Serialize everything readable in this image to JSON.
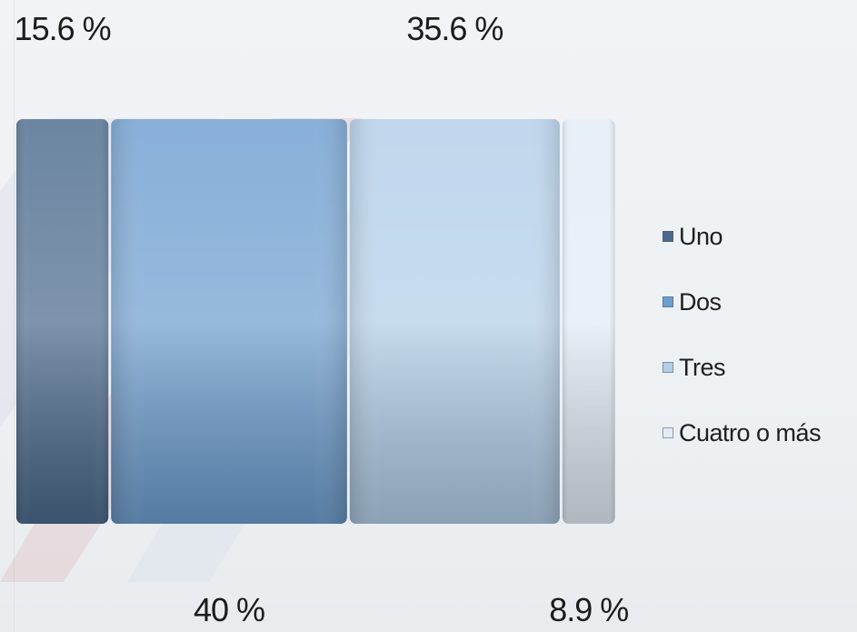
{
  "chart_data": {
    "type": "bar",
    "stacked": true,
    "orientation": "horizontal",
    "categories": [
      ""
    ],
    "series": [
      {
        "name": "Uno",
        "values": [
          15.6
        ],
        "label": "15.6 %",
        "label_pos": "top",
        "color": "#4b6a8c"
      },
      {
        "name": "Dos",
        "values": [
          40
        ],
        "label": "40 %",
        "label_pos": "bottom",
        "color": "#6e9ed0"
      },
      {
        "name": "Tres",
        "values": [
          35.6
        ],
        "label": "35.6 %",
        "label_pos": "top",
        "color": "#b2cee9"
      },
      {
        "name": "Cuatro o más",
        "values": [
          8.9
        ],
        "label": "8.9 %",
        "label_pos": "bottom",
        "color": "#e2ebf5"
      }
    ],
    "title": "",
    "xlabel": "",
    "ylabel": "",
    "xlim": [
      0,
      100
    ],
    "grid": false,
    "legend_position": "right"
  }
}
